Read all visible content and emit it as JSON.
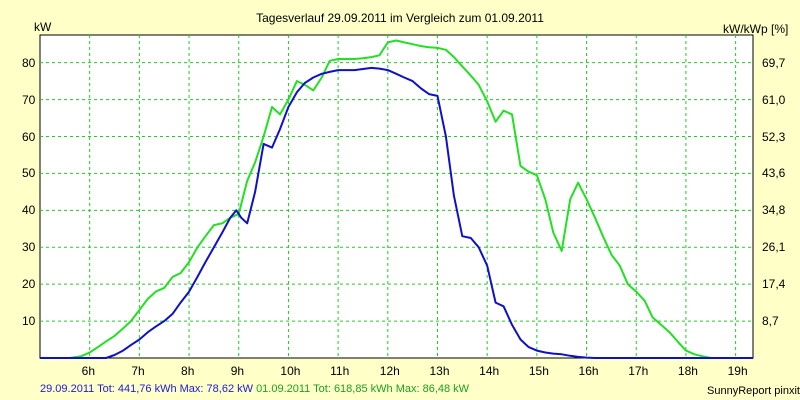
{
  "chart_data": {
    "type": "line",
    "title": "Tagesverlauf 29.09.2011 im Vergleich zum 01.09.2011",
    "ylabel_left": "kW",
    "ylabel_right": "kW/kWp [%]",
    "xlabel": "",
    "xlim": [
      5.0,
      19.35
    ],
    "ylim": [
      0,
      87.5
    ],
    "x_ticks": [
      6,
      7,
      8,
      9,
      10,
      11,
      12,
      13,
      14,
      15,
      16,
      17,
      18,
      19
    ],
    "x_tick_labels": [
      "6h",
      "7h",
      "8h",
      "9h",
      "10h",
      "11h",
      "12h",
      "13h",
      "14h",
      "15h",
      "16h",
      "17h",
      "18h",
      "19h"
    ],
    "y_ticks": [
      10,
      20,
      30,
      40,
      50,
      60,
      70,
      80
    ],
    "y_tick_labels": [
      "10",
      "20",
      "30",
      "40",
      "50",
      "60",
      "70",
      "80"
    ],
    "y_right_ticks": [
      10,
      20,
      30,
      40,
      50,
      60,
      70,
      80
    ],
    "y_right_tick_labels": [
      "8,7",
      "17,4",
      "26,1",
      "34,8",
      "43,6",
      "52,3",
      "61,0",
      "69,7"
    ],
    "grid": true,
    "legend": "bottom-left",
    "series": [
      {
        "name": "29.09.2011",
        "color": "#1010c8",
        "x": [
          5.0,
          6.0,
          6.33,
          6.5,
          6.67,
          6.83,
          7.0,
          7.17,
          7.33,
          7.5,
          7.67,
          7.83,
          8.0,
          8.17,
          8.33,
          8.5,
          8.67,
          8.83,
          8.95,
          9.05,
          9.17,
          9.33,
          9.5,
          9.67,
          9.83,
          10.0,
          10.17,
          10.33,
          10.5,
          10.67,
          10.83,
          11.0,
          11.17,
          11.33,
          11.5,
          11.67,
          11.83,
          12.0,
          12.17,
          12.33,
          12.5,
          12.67,
          12.83,
          13.0,
          13.17,
          13.33,
          13.5,
          13.67,
          13.83,
          14.0,
          14.17,
          14.33,
          14.5,
          14.67,
          14.83,
          15.0,
          15.17,
          15.33,
          15.5,
          15.67,
          15.83,
          16.0,
          16.17,
          16.33,
          16.5,
          16.67,
          16.83,
          17.0,
          17.17,
          17.33,
          17.5,
          17.67,
          17.83,
          18.0,
          18.5,
          19.35
        ],
        "y": [
          0,
          0,
          0,
          0.8,
          2,
          3.5,
          5,
          7,
          8.5,
          10,
          12,
          15,
          18,
          22,
          26,
          30,
          34,
          38,
          40,
          38,
          36.5,
          45,
          58,
          57,
          62,
          68,
          72,
          74.5,
          76,
          77,
          77.5,
          78,
          78,
          78,
          78.3,
          78.6,
          78.4,
          78,
          77,
          76,
          75,
          73,
          71.5,
          71,
          60,
          44,
          33,
          32.5,
          30,
          25,
          15,
          14,
          9,
          5,
          3,
          2,
          1.5,
          1.2,
          1,
          0.6,
          0.3,
          0.1,
          0,
          0,
          0,
          0,
          0,
          0,
          0,
          0,
          0,
          0,
          0,
          0,
          0,
          0
        ],
        "total": "441,76 kWh",
        "max": "78,62 kW"
      },
      {
        "name": "01.09.2011",
        "color": "#22e022",
        "x": [
          5.0,
          5.6,
          5.83,
          6.0,
          6.17,
          6.33,
          6.5,
          6.67,
          6.83,
          7.0,
          7.17,
          7.33,
          7.5,
          7.67,
          7.83,
          8.0,
          8.17,
          8.33,
          8.5,
          8.67,
          8.83,
          9.0,
          9.17,
          9.33,
          9.5,
          9.67,
          9.83,
          10.0,
          10.17,
          10.33,
          10.5,
          10.67,
          10.83,
          11.0,
          11.17,
          11.33,
          11.5,
          11.67,
          11.83,
          12.0,
          12.17,
          12.33,
          12.5,
          12.67,
          12.83,
          13.0,
          13.17,
          13.33,
          13.5,
          13.67,
          13.83,
          14.0,
          14.17,
          14.33,
          14.5,
          14.67,
          14.83,
          15.0,
          15.17,
          15.33,
          15.5,
          15.67,
          15.83,
          16.0,
          16.17,
          16.33,
          16.5,
          16.67,
          16.83,
          17.0,
          17.17,
          17.33,
          17.5,
          17.67,
          17.83,
          18.0,
          18.17,
          18.33,
          18.5,
          18.67,
          18.83,
          19.0,
          19.35
        ],
        "y": [
          0,
          0,
          0.5,
          1.5,
          3,
          4.5,
          6,
          8,
          10,
          13,
          16,
          18,
          19,
          22,
          23,
          26,
          30,
          33,
          36,
          36.5,
          38,
          39,
          48,
          53,
          60,
          68,
          66,
          70,
          75,
          74,
          72.5,
          76,
          80.5,
          81,
          81,
          81,
          81.2,
          81.5,
          82,
          85.5,
          86,
          85.5,
          85,
          84.5,
          84.2,
          84,
          83.5,
          81.5,
          79,
          76.5,
          74,
          69.5,
          64,
          67,
          66,
          52,
          50.5,
          49.5,
          43,
          34,
          29,
          43,
          47.5,
          43,
          38,
          33,
          28,
          25,
          20,
          18,
          15.5,
          11,
          9,
          7,
          4.5,
          2,
          1,
          0.5,
          0,
          0,
          0,
          0,
          0
        ],
        "total": "618,85 kWh",
        "max": "86,48 kW"
      }
    ]
  },
  "footer": {
    "series1_text": "29.09.2011 Tot: 441,76 kWh Max: 78,62 kW",
    "series2_text": "01.09.2011 Tot: 618,85 kWh Max: 86,48 kW",
    "credit": "SunnyReport pinxit"
  },
  "colors": {
    "background": "#ffffc8",
    "plot_background": "#ffffff",
    "grid": "#22cc22",
    "series1": "#1010c8",
    "series2": "#22e022",
    "footer_series1": "#1a1adc",
    "footer_series2": "#1ea01e"
  }
}
